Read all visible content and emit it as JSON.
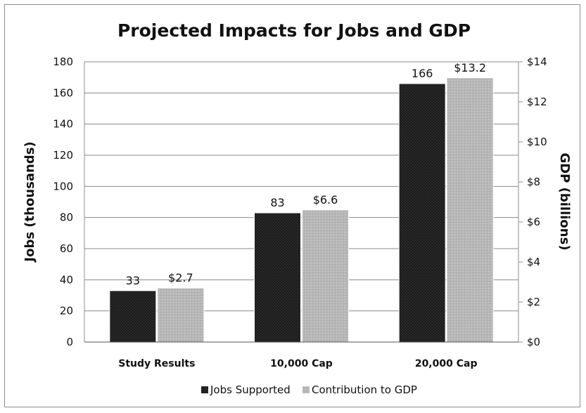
{
  "chart_data": {
    "type": "bar",
    "title": "Projected Impacts for Jobs and GDP",
    "categories": [
      "Study Results",
      "10,000 Cap",
      "20,000 Cap"
    ],
    "ylabel_left": "Jobs  (thousands)",
    "ylabel_right": "GDP  (billions)",
    "ylim_left": [
      0,
      180
    ],
    "ylim_right": [
      0,
      14
    ],
    "yticks_left": [
      "0",
      "20",
      "40",
      "60",
      "80",
      "100",
      "120",
      "140",
      "160",
      "180"
    ],
    "yticks_right": [
      "$0",
      "$2",
      "$4",
      "$6",
      "$8",
      "$10",
      "$12",
      "$14"
    ],
    "grid": true,
    "legend_position": "bottom",
    "series": [
      {
        "name": "Jobs Supported",
        "axis": "left",
        "color": "#1f1f1f",
        "values": [
          33,
          83,
          166
        ],
        "labels": [
          "33",
          "83",
          "166"
        ]
      },
      {
        "name": "Contribution to GDP",
        "axis": "right",
        "color": "#b5b5b5",
        "values": [
          2.7,
          6.6,
          13.2
        ],
        "labels": [
          "$2.7",
          "$6.6",
          "$13.2"
        ]
      }
    ]
  }
}
